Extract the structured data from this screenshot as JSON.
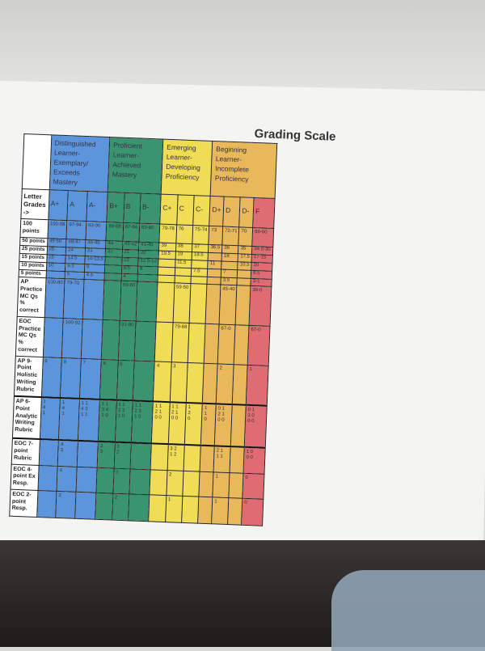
{
  "title": "Grading Scale",
  "colors": {
    "blue": "#5d95dc",
    "green": "#3a9470",
    "yellow": "#f1dc55",
    "orange": "#e9b85a",
    "red": "#df6b73"
  },
  "groups": [
    {
      "label": "Distinguished Learner-Exemplary/ Exceeds Mastery",
      "span": 3,
      "color": "blue"
    },
    {
      "label": "Proficient Learner- Achieved Mastery",
      "span": 3,
      "color": "green"
    },
    {
      "label": "Emerging Learner- Developing Proficiency",
      "span": 3,
      "color": "yellow"
    },
    {
      "label": "Beginning Learner- Incomplete Proficiency",
      "span": 4,
      "color": "orange"
    }
  ],
  "grades_label": "Letter Grades ->",
  "grades": [
    "A+",
    "A",
    "A-",
    "B+",
    "B",
    "B-",
    "C+",
    "C",
    "C-",
    "D+",
    "D",
    "D-",
    "F"
  ],
  "rows": [
    {
      "label": "100 points",
      "cells": [
        "100-98",
        "97-94",
        "93-90",
        "89-88",
        "87-84",
        "83-80",
        "79-78",
        "76",
        "75-74",
        "73",
        "72-71",
        "70",
        "69-60"
      ]
    },
    {
      "label": "50 points",
      "cells": [
        "49-50",
        "48-47",
        "46-45",
        "44",
        "43-42",
        "41-40",
        "39",
        "38",
        "37",
        "36.5",
        "36",
        "35",
        "34.5-30"
      ]
    },
    {
      "label": "25 points",
      "cells": [
        "25",
        "24",
        "23",
        "22",
        "21",
        "20",
        "19.5",
        "19",
        "18.5",
        "",
        "18",
        "17.5",
        "17-15"
      ]
    },
    {
      "label": "15 points",
      "cells": [
        "15",
        "14.5",
        "14-13.5",
        "",
        "13",
        "12.5-12",
        "",
        "11.5",
        "",
        "11",
        "",
        "10.5",
        "10"
      ]
    },
    {
      "label": "10 points",
      "cells": [
        "10",
        "9.5",
        "9",
        "",
        "8.5",
        "8",
        "",
        "",
        "7.5",
        "",
        "7",
        "",
        "6.5"
      ]
    },
    {
      "label": "5 points",
      "cells": [
        "",
        "5",
        "4.5",
        "",
        "4",
        "",
        "",
        "",
        "",
        "",
        "3.5",
        "",
        "3-1"
      ]
    },
    {
      "label": "AP Practice MC Qs % correct",
      "cells": [
        "100-80",
        "79-70",
        "",
        "",
        "69-60",
        "",
        "",
        "59-50",
        "",
        "",
        "45-40",
        "",
        "39-0"
      ]
    },
    {
      "label": "EOC Practice MC Qs % correct",
      "cells": [
        "",
        "100-92",
        "",
        "",
        "91-80",
        "",
        "",
        "79-68",
        "",
        "",
        "67-0",
        "",
        "67-0"
      ]
    },
    {
      "label": "AP 9-Point Holistic Writing Rubric",
      "cells": [
        "9",
        "8",
        "7",
        "6",
        "5",
        "",
        "4",
        "3",
        "",
        "",
        "2",
        "",
        "1"
      ]
    },
    {
      "label": "AP 6-Point Analytic Writing Rubric",
      "cells": [
        "1\n4\n1",
        "1\n4\n1",
        "1 1\n4 3\n1 1",
        "1 1\n3 4\n1 0",
        "1 1\n2 3\n1 0",
        "1 1\n2 3\n1 0",
        "1 1\n2 1\n0 0",
        "1 1\n2 1\n0 0",
        "1\n2\n0",
        "1\n1\n0",
        "0 1\n2 1\n0 0",
        "",
        "0 1\n1 0\n0 0"
      ]
    },
    {
      "label": "EOC 7-point Rubric",
      "cells": [
        "",
        "4\n3",
        "",
        "3\n3",
        "3\n2",
        "",
        "",
        "3 2\n1 2",
        "",
        "",
        "2 1\n1 1",
        "",
        "1 0\n0 0"
      ]
    },
    {
      "label": "EOC 4-point Ex Resp.",
      "cells": [
        "",
        "4",
        "",
        "",
        "3",
        "",
        "",
        "2",
        "",
        "",
        "1",
        "",
        "0"
      ]
    },
    {
      "label": "EOC 2-point Resp.",
      "cells": [
        "",
        "2",
        "",
        "",
        "2",
        "",
        "",
        "1",
        "",
        "",
        "1",
        "",
        "0"
      ]
    }
  ]
}
